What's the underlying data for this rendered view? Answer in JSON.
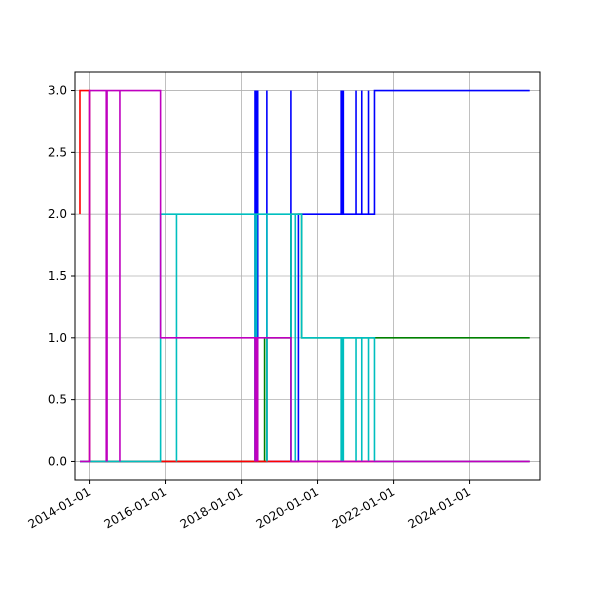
{
  "chart_data": {
    "type": "line",
    "title": "",
    "xlabel": "",
    "ylabel": "",
    "grid": true,
    "legend": "none",
    "x_axis_type": "date",
    "xlim": [
      "2013-08-14",
      "2025-11-08"
    ],
    "ylim": [
      -0.15,
      3.15
    ],
    "x_ticks": [
      "2014-01-01",
      "2016-01-01",
      "2018-01-01",
      "2020-01-01",
      "2022-01-01",
      "2024-01-01"
    ],
    "y_ticks": [
      "0.0",
      "0.5",
      "1.0",
      "1.5",
      "2.0",
      "2.5",
      "3.0"
    ],
    "y_tick_values": [
      0,
      0.5,
      1,
      1.5,
      2,
      2.5,
      3
    ],
    "x_end": "2025-08-01",
    "series": [
      {
        "color": "#0000ff",
        "points": [
          [
            "2013-10-01",
            0
          ],
          [
            "2019-07-01",
            0
          ],
          [
            "2019-07-01",
            2
          ],
          [
            "2021-07-01",
            2
          ],
          [
            "2021-07-01",
            3
          ],
          [
            "2025-08-01",
            3
          ]
        ],
        "spikes": [
          {
            "x": "2018-05-10",
            "from": 0,
            "to": 3
          },
          {
            "x": "2018-05-18",
            "from": 0,
            "to": 3
          },
          {
            "x": "2018-05-25",
            "from": 0,
            "to": 3
          },
          {
            "x": "2018-06-05",
            "from": 0,
            "to": 3
          },
          {
            "x": "2018-09-01",
            "from": 0,
            "to": 3
          },
          {
            "x": "2019-04-20",
            "from": 0,
            "to": 3
          },
          {
            "x": "2020-08-15",
            "from": 2,
            "to": 3
          },
          {
            "x": "2020-08-25",
            "from": 2,
            "to": 3
          },
          {
            "x": "2020-09-05",
            "from": 2,
            "to": 3
          },
          {
            "x": "2021-01-05",
            "from": 2,
            "to": 3
          },
          {
            "x": "2021-03-01",
            "from": 2,
            "to": 3
          },
          {
            "x": "2021-05-05",
            "from": 2,
            "to": 3
          }
        ]
      },
      {
        "color": "#008000",
        "points": [
          [
            "2013-10-01",
            0
          ],
          [
            "2018-09-01",
            0
          ],
          [
            "2018-09-01",
            1
          ],
          [
            "2019-04-20",
            1
          ],
          [
            "2019-04-20",
            2
          ],
          [
            "2019-08-01",
            2
          ],
          [
            "2019-08-01",
            1
          ],
          [
            "2025-08-01",
            1
          ]
        ],
        "spikes": [
          {
            "x": "2018-08-10",
            "from": 0,
            "to": 1
          }
        ]
      },
      {
        "color": "#ff0000",
        "points": [
          [
            "2013-10-01",
            2
          ],
          [
            "2013-10-01",
            3
          ],
          [
            "2014-01-01",
            3
          ],
          [
            "2014-01-01",
            0
          ],
          [
            "2025-08-01",
            0
          ]
        ],
        "spikes": []
      },
      {
        "color": "#00bfbf",
        "points": [
          [
            "2013-10-01",
            0
          ],
          [
            "2015-11-15",
            0
          ],
          [
            "2015-11-15",
            2
          ],
          [
            "2019-08-01",
            2
          ],
          [
            "2019-08-01",
            1
          ],
          [
            "2021-07-01",
            1
          ],
          [
            "2021-07-01",
            0
          ],
          [
            "2025-08-01",
            0
          ]
        ],
        "spikes": [
          {
            "x": "2016-04-15",
            "from": 0,
            "to": 2
          },
          {
            "x": "2018-05-10",
            "from": 0,
            "to": 2
          },
          {
            "x": "2018-05-25",
            "from": 0,
            "to": 2
          },
          {
            "x": "2018-09-01",
            "from": 0,
            "to": 2
          },
          {
            "x": "2019-04-20",
            "from": 0,
            "to": 2
          },
          {
            "x": "2019-06-01",
            "from": 0,
            "to": 2
          },
          {
            "x": "2020-08-15",
            "from": 1,
            "to": 0
          },
          {
            "x": "2020-08-25",
            "from": 1,
            "to": 0
          },
          {
            "x": "2020-09-05",
            "from": 1,
            "to": 0
          },
          {
            "x": "2021-01-05",
            "from": 1,
            "to": 0
          },
          {
            "x": "2021-03-01",
            "from": 1,
            "to": 0
          },
          {
            "x": "2021-05-05",
            "from": 1,
            "to": 0
          }
        ]
      },
      {
        "color": "#bf00bf",
        "points": [
          [
            "2013-10-01",
            0
          ],
          [
            "2014-01-01",
            0
          ],
          [
            "2014-01-01",
            3
          ],
          [
            "2015-11-15",
            3
          ],
          [
            "2015-11-15",
            1
          ],
          [
            "2019-04-20",
            1
          ],
          [
            "2019-04-20",
            0
          ],
          [
            "2025-08-01",
            0
          ]
        ],
        "spikes": [
          {
            "x": "2014-06-10",
            "from": 3,
            "to": 0
          },
          {
            "x": "2014-06-18",
            "from": 3,
            "to": 0
          },
          {
            "x": "2014-10-20",
            "from": 3,
            "to": 0
          },
          {
            "x": "2018-05-10",
            "from": 1,
            "to": 0
          },
          {
            "x": "2018-05-18",
            "from": 1,
            "to": 0
          },
          {
            "x": "2018-05-25",
            "from": 1,
            "to": 0
          },
          {
            "x": "2018-06-05",
            "from": 1,
            "to": 0
          }
        ]
      }
    ]
  }
}
